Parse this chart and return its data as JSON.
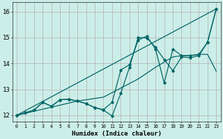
{
  "xlabel": "Humidex (Indice chaleur)",
  "bg_color": "#cceee8",
  "grid_color": "#b0b0b0",
  "line_color": "#006666",
  "xlim": [
    -0.5,
    23.5
  ],
  "ylim": [
    11.75,
    16.35
  ],
  "xticks": [
    0,
    1,
    2,
    3,
    4,
    5,
    6,
    7,
    8,
    9,
    10,
    11,
    12,
    13,
    14,
    15,
    16,
    17,
    18,
    19,
    20,
    21,
    22,
    23
  ],
  "yticks": [
    12,
    13,
    14,
    15,
    16
  ],
  "series_no_marker": [
    {
      "x": [
        0,
        23
      ],
      "y": [
        12.0,
        16.1
      ]
    },
    {
      "x": [
        0,
        7,
        10,
        14,
        16,
        18,
        19,
        20,
        21,
        22,
        23
      ],
      "y": [
        12.0,
        12.55,
        12.7,
        13.4,
        13.85,
        14.25,
        14.3,
        14.3,
        14.35,
        14.35,
        13.7
      ]
    }
  ],
  "series_with_marker": [
    {
      "x": [
        0,
        1,
        2,
        3,
        4,
        5,
        6,
        7,
        8,
        9,
        10,
        11,
        12,
        13,
        14,
        15,
        16,
        17,
        18,
        19,
        20,
        21,
        22,
        23
      ],
      "y": [
        12.0,
        12.1,
        12.2,
        12.5,
        12.35,
        12.6,
        12.62,
        12.55,
        12.45,
        12.3,
        12.2,
        11.98,
        12.85,
        13.85,
        15.0,
        14.98,
        14.62,
        14.15,
        13.72,
        14.25,
        14.22,
        14.3,
        14.82,
        16.1
      ]
    },
    {
      "x": [
        0,
        1,
        2,
        3,
        4,
        5,
        6,
        7,
        8,
        9,
        10,
        11,
        12,
        13,
        14,
        15,
        16,
        17,
        18,
        19,
        20,
        21,
        22,
        23
      ],
      "y": [
        12.0,
        12.1,
        12.2,
        12.5,
        12.35,
        12.6,
        12.62,
        12.55,
        12.45,
        12.3,
        12.22,
        12.5,
        13.75,
        13.95,
        14.9,
        15.05,
        14.55,
        13.25,
        14.55,
        14.3,
        14.3,
        14.35,
        14.82,
        16.1
      ]
    }
  ]
}
